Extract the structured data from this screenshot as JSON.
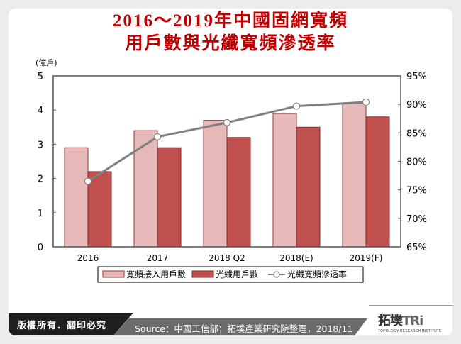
{
  "title": {
    "line1": "2016～2019年中國固網寬頻",
    "line2": "用戶數與光纖寬頻滲透率"
  },
  "colors": {
    "title": "#c00000",
    "broadband_bar": "#e6b8b7",
    "broadband_border": "#8b3a3a",
    "fiber_bar": "#c0504d",
    "fiber_border": "#7a2a28",
    "line": "#808080"
  },
  "chart_data": {
    "type": "bar+line",
    "title": "2016～2019年中國固網寬頻用戶數與光纖寬頻滲透率",
    "categories": [
      "2016",
      "2017",
      "2018 Q2",
      "2018(E)",
      "2019(F)"
    ],
    "series": [
      {
        "name": "寬頻接入用戶數",
        "type": "bar",
        "axis": "left",
        "values": [
          2.9,
          3.4,
          3.7,
          3.9,
          4.2
        ]
      },
      {
        "name": "光纖用戶數",
        "type": "bar",
        "axis": "left",
        "values": [
          2.2,
          2.9,
          3.2,
          3.5,
          3.8
        ]
      },
      {
        "name": "光纖寬頻滲透率",
        "type": "line",
        "axis": "right",
        "values": [
          76.5,
          84.3,
          86.8,
          89.7,
          90.4
        ]
      }
    ],
    "ylabel": "(億戶)",
    "ylim": [
      0,
      5
    ],
    "yticks": [
      "0",
      "1",
      "2",
      "3",
      "4",
      "5"
    ],
    "y2lim": [
      65,
      95
    ],
    "y2ticks": [
      "65%",
      "70%",
      "75%",
      "80%",
      "85%",
      "90%",
      "95%"
    ],
    "legend_position": "bottom",
    "grid": false
  },
  "legend": {
    "item1": "寬頻接入用戶數",
    "item2": "光纖用戶數",
    "item3": "光纖寬頻滲透率"
  },
  "footer": {
    "copyright": "版權所有．翻印必究",
    "source": "Source：中國工信部；拓墣產業研究院整理，2018/11",
    "logo_name": "拓墣",
    "logo_tri": "TRi",
    "logo_sub": "TOPOLOGY RESEARCH INSTITUTE"
  }
}
